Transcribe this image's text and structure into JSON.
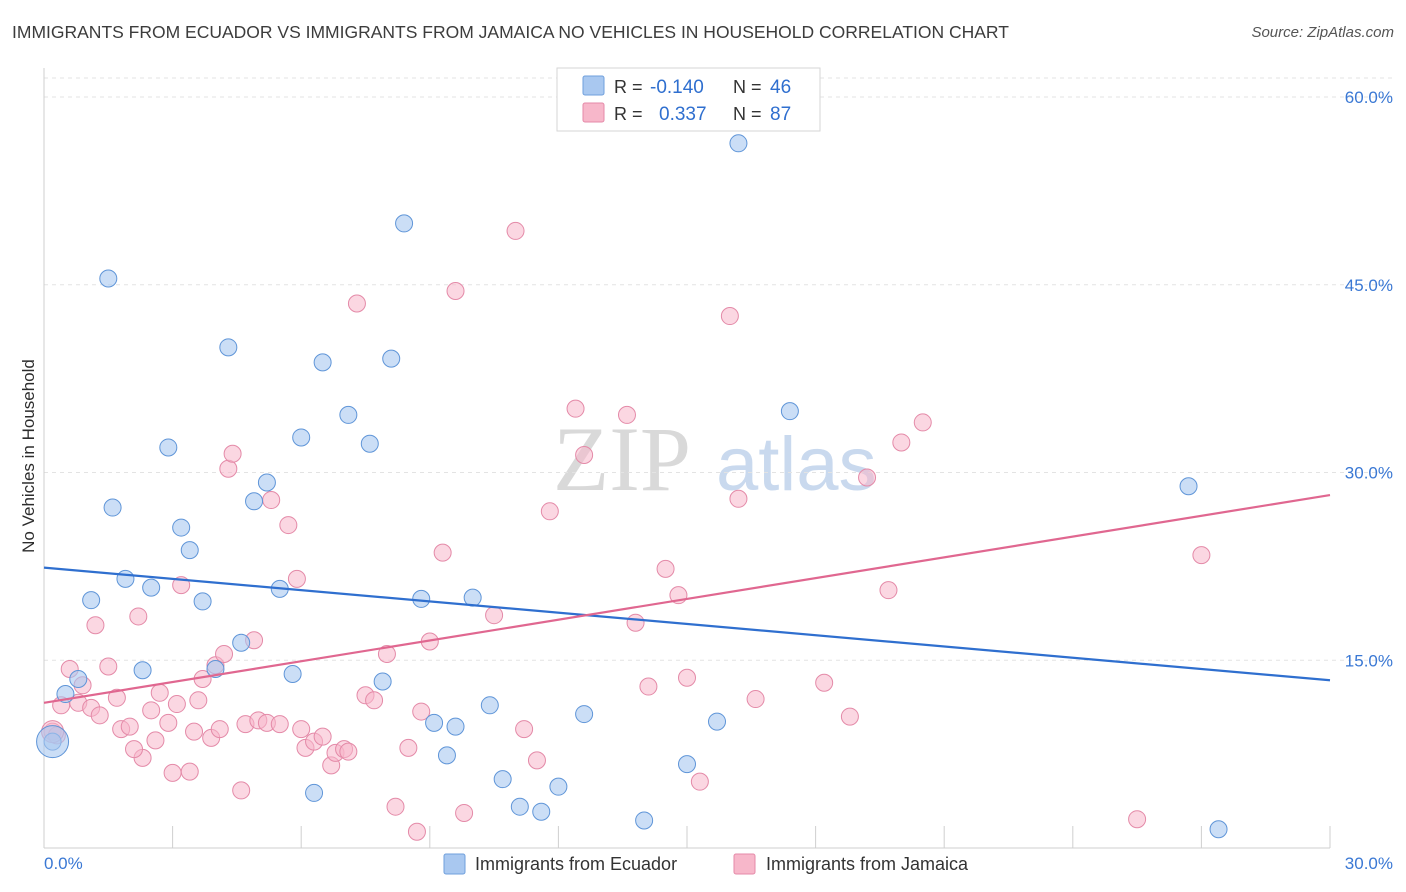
{
  "title": "IMMIGRANTS FROM ECUADOR VS IMMIGRANTS FROM JAMAICA NO VEHICLES IN HOUSEHOLD CORRELATION CHART",
  "source": "Source: ZipAtlas.com",
  "watermark": {
    "zip": "ZIP",
    "atlas": "atlas"
  },
  "legend_box": {
    "rows": [
      {
        "r_label": "R =",
        "r_value": "-0.140",
        "n_label": "N =",
        "n_value": "46",
        "color": "#a9c8f0"
      },
      {
        "r_label": "R =",
        "r_value": "0.337",
        "n_label": "N =",
        "n_value": "87",
        "color": "#f7b7ca"
      }
    ]
  },
  "bottom_legend": [
    {
      "label": "Immigrants from Ecuador",
      "color": "#a9c8f0"
    },
    {
      "label": "Immigrants from Jamaica",
      "color": "#f7b7ca"
    }
  ],
  "chart_data": {
    "type": "scatter",
    "title": "IMMIGRANTS FROM ECUADOR VS IMMIGRANTS FROM JAMAICA NO VEHICLES IN HOUSEHOLD CORRELATION CHART",
    "xlabel": "",
    "ylabel": "No Vehicles in Household",
    "xlim": [
      0,
      30
    ],
    "ylim": [
      0,
      60
    ],
    "x_tick_labels": [
      "0.0%",
      "30.0%"
    ],
    "y_ticks": [
      15,
      30,
      45,
      60
    ],
    "y_tick_labels": [
      "15.0%",
      "30.0%",
      "45.0%",
      "60.0%"
    ],
    "grid": "horizontal dashed",
    "colors": {
      "ecuador": "#a9c8f0",
      "ecuador_line": "#2f6fcf",
      "jamaica": "#f7b7ca",
      "jamaica_line": "#e06790"
    },
    "series": [
      {
        "name": "Immigrants from Ecuador",
        "trend": {
          "x": [
            0,
            30
          ],
          "y": [
            22.4,
            13.4
          ]
        },
        "points": [
          [
            0.2,
            8.5
          ],
          [
            0.8,
            13.5
          ],
          [
            0.5,
            12.3
          ],
          [
            1.5,
            45.5
          ],
          [
            1.6,
            27.2
          ],
          [
            1.1,
            19.8
          ],
          [
            1.9,
            21.5
          ],
          [
            2.3,
            14.2
          ],
          [
            2.5,
            20.8
          ],
          [
            2.9,
            32.0
          ],
          [
            3.2,
            25.6
          ],
          [
            3.4,
            23.8
          ],
          [
            3.7,
            19.7
          ],
          [
            4.0,
            14.3
          ],
          [
            4.3,
            40.0
          ],
          [
            4.6,
            16.4
          ],
          [
            4.9,
            27.7
          ],
          [
            5.2,
            29.2
          ],
          [
            5.5,
            20.7
          ],
          [
            5.8,
            13.9
          ],
          [
            6.0,
            32.8
          ],
          [
            6.5,
            38.8
          ],
          [
            6.3,
            4.4
          ],
          [
            7.1,
            34.6
          ],
          [
            7.6,
            32.3
          ],
          [
            7.9,
            13.3
          ],
          [
            8.1,
            39.1
          ],
          [
            8.4,
            49.9
          ],
          [
            8.8,
            19.9
          ],
          [
            9.1,
            10.0
          ],
          [
            9.4,
            7.4
          ],
          [
            9.6,
            9.7
          ],
          [
            10.0,
            20.0
          ],
          [
            10.4,
            11.4
          ],
          [
            10.7,
            5.5
          ],
          [
            11.1,
            3.3
          ],
          [
            11.6,
            2.9
          ],
          [
            12.0,
            4.9
          ],
          [
            12.6,
            10.7
          ],
          [
            14.0,
            2.2
          ],
          [
            15.0,
            6.7
          ],
          [
            15.7,
            10.1
          ],
          [
            16.2,
            56.3
          ],
          [
            17.4,
            34.9
          ],
          [
            26.7,
            28.9
          ],
          [
            27.4,
            1.5
          ]
        ]
      },
      {
        "name": "Immigrants from Jamaica",
        "trend": {
          "x": [
            0,
            30
          ],
          "y": [
            11.6,
            28.2
          ]
        },
        "points": [
          [
            0.2,
            9.3
          ],
          [
            0.4,
            11.4
          ],
          [
            0.6,
            14.3
          ],
          [
            0.8,
            11.6
          ],
          [
            0.9,
            13.0
          ],
          [
            1.1,
            11.2
          ],
          [
            1.2,
            17.8
          ],
          [
            1.3,
            10.6
          ],
          [
            1.5,
            14.5
          ],
          [
            1.7,
            12.0
          ],
          [
            1.8,
            9.5
          ],
          [
            2.0,
            9.7
          ],
          [
            2.2,
            18.5
          ],
          [
            2.3,
            7.2
          ],
          [
            2.5,
            11.0
          ],
          [
            2.6,
            8.6
          ],
          [
            2.7,
            12.4
          ],
          [
            2.9,
            10.0
          ],
          [
            3.0,
            6.0
          ],
          [
            3.1,
            11.5
          ],
          [
            3.2,
            21.0
          ],
          [
            3.4,
            6.1
          ],
          [
            3.5,
            9.3
          ],
          [
            3.6,
            11.8
          ],
          [
            3.7,
            13.5
          ],
          [
            3.9,
            8.8
          ],
          [
            4.0,
            14.6
          ],
          [
            4.1,
            9.5
          ],
          [
            4.2,
            15.5
          ],
          [
            4.3,
            30.3
          ],
          [
            4.4,
            31.5
          ],
          [
            4.6,
            4.6
          ],
          [
            4.7,
            9.9
          ],
          [
            4.9,
            16.6
          ],
          [
            5.0,
            10.2
          ],
          [
            5.2,
            10.0
          ],
          [
            5.3,
            27.8
          ],
          [
            5.5,
            9.9
          ],
          [
            5.7,
            25.8
          ],
          [
            5.9,
            21.5
          ],
          [
            6.0,
            9.5
          ],
          [
            6.1,
            8.0
          ],
          [
            6.3,
            8.5
          ],
          [
            6.5,
            8.9
          ],
          [
            6.7,
            6.6
          ],
          [
            6.8,
            7.6
          ],
          [
            7.0,
            7.9
          ],
          [
            7.1,
            7.7
          ],
          [
            7.3,
            43.5
          ],
          [
            7.5,
            12.2
          ],
          [
            7.7,
            11.8
          ],
          [
            8.0,
            15.5
          ],
          [
            8.2,
            3.3
          ],
          [
            8.5,
            8.0
          ],
          [
            8.7,
            1.3
          ],
          [
            8.8,
            10.9
          ],
          [
            9.0,
            16.5
          ],
          [
            9.3,
            23.6
          ],
          [
            9.6,
            44.5
          ],
          [
            9.8,
            2.8
          ],
          [
            10.5,
            18.6
          ],
          [
            11.0,
            49.3
          ],
          [
            11.2,
            9.5
          ],
          [
            11.5,
            7.0
          ],
          [
            11.8,
            26.9
          ],
          [
            12.4,
            35.1
          ],
          [
            12.6,
            31.4
          ],
          [
            13.6,
            34.6
          ],
          [
            13.8,
            18.0
          ],
          [
            14.1,
            12.9
          ],
          [
            14.5,
            22.3
          ],
          [
            14.8,
            20.2
          ],
          [
            15.0,
            13.6
          ],
          [
            15.3,
            5.3
          ],
          [
            16.0,
            42.5
          ],
          [
            16.2,
            27.9
          ],
          [
            16.6,
            11.9
          ],
          [
            18.2,
            13.2
          ],
          [
            18.8,
            10.5
          ],
          [
            19.2,
            29.6
          ],
          [
            19.7,
            20.6
          ],
          [
            20.0,
            32.4
          ],
          [
            20.5,
            34.0
          ],
          [
            25.5,
            2.3
          ],
          [
            27.0,
            23.4
          ],
          [
            0.3,
            9.0
          ],
          [
            2.1,
            7.9
          ]
        ]
      }
    ]
  }
}
